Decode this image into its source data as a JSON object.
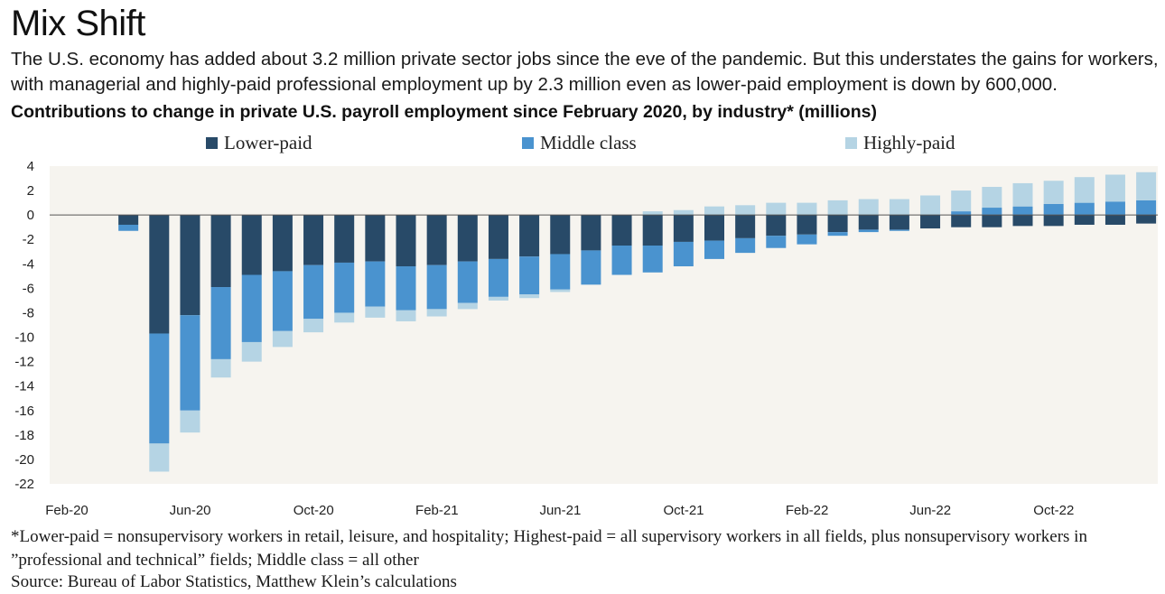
{
  "header": {
    "title": "Mix Shift",
    "subtitle": "The U.S. economy has added about 3.2 million private sector jobs since the eve of the pandemic. But this understates the gains for workers, with managerial and highly-paid professional employment up by 2.3 million even as lower-paid employment is down by 600,000.",
    "chart_heading": "Contributions to change in private U.S. payroll employment since February 2020, by industry* (millions)"
  },
  "footer": {
    "footnote": "*Lower-paid = nonsupervisory workers in retail, leisure, and hospitality; Highest-paid = all supervisory workers in all fields, plus nonsupervisory workers in ”professional and technical” fields; Middle class = all other",
    "source": "Source: Bureau of Labor Statistics, Matthew Klein’s calculations"
  },
  "colors": {
    "lower_paid": "#284a68",
    "middle_class": "#4a93cf",
    "highly_paid": "#b5d4e4",
    "plot_background": "#f6f4ef"
  },
  "chart_data": {
    "type": "bar",
    "stacked": true,
    "title": "Contributions to change in private U.S. payroll employment since February 2020, by industry* (millions)",
    "categories": [
      "Feb-20",
      "Mar-20",
      "Apr-20",
      "May-20",
      "Jun-20",
      "Jul-20",
      "Aug-20",
      "Sep-20",
      "Oct-20",
      "Nov-20",
      "Dec-20",
      "Jan-21",
      "Feb-21",
      "Mar-21",
      "Apr-21",
      "May-21",
      "Jun-21",
      "Jul-21",
      "Aug-21",
      "Sep-21",
      "Oct-21",
      "Nov-21",
      "Dec-21",
      "Jan-22",
      "Feb-22",
      "Mar-22",
      "Apr-22",
      "May-22",
      "Jun-22",
      "Jul-22",
      "Aug-22",
      "Sep-22",
      "Oct-22",
      "Nov-22",
      "Dec-22",
      "Jan-23"
    ],
    "x_tick_labels": [
      "Feb-20",
      "Jun-20",
      "Oct-20",
      "Feb-21",
      "Jun-21",
      "Oct-21",
      "Feb-22",
      "Jun-22",
      "Oct-22"
    ],
    "series": [
      {
        "name": "Lower-paid",
        "color": "#284a68",
        "values": [
          0,
          -0.8,
          -9.7,
          -8.2,
          -5.9,
          -4.9,
          -4.6,
          -4.1,
          -3.9,
          -3.8,
          -4.2,
          -4.1,
          -3.8,
          -3.6,
          -3.4,
          -3.2,
          -2.9,
          -2.5,
          -2.5,
          -2.2,
          -2.1,
          -1.9,
          -1.7,
          -1.6,
          -1.4,
          -1.2,
          -1.2,
          -1.1,
          -1.0,
          -1.0,
          -0.9,
          -0.9,
          -0.8,
          -0.8,
          -0.7,
          -0.6
        ]
      },
      {
        "name": "Middle class",
        "color": "#4a93cf",
        "values": [
          0,
          -0.5,
          -9.0,
          -7.8,
          -5.9,
          -5.5,
          -4.9,
          -4.4,
          -4.1,
          -3.7,
          -3.6,
          -3.6,
          -3.4,
          -3.1,
          -3.1,
          -2.9,
          -2.8,
          -2.4,
          -2.2,
          -2.0,
          -1.5,
          -1.2,
          -1.0,
          -0.8,
          -0.3,
          -0.2,
          -0.1,
          0.0,
          0.3,
          0.6,
          0.7,
          0.9,
          1.0,
          1.1,
          1.2,
          1.4
        ]
      },
      {
        "name": "Highly-paid",
        "color": "#b5d4e4",
        "values": [
          0,
          0.0,
          -2.3,
          -1.8,
          -1.5,
          -1.6,
          -1.3,
          -1.1,
          -0.8,
          -0.9,
          -0.9,
          -0.6,
          -0.5,
          -0.3,
          -0.3,
          -0.2,
          0.0,
          0.0,
          0.3,
          0.4,
          0.7,
          0.8,
          1.0,
          1.0,
          1.2,
          1.3,
          1.3,
          1.6,
          1.7,
          1.7,
          1.9,
          1.9,
          2.1,
          2.2,
          2.3,
          2.3
        ]
      }
    ],
    "xlabel": "",
    "ylabel": "",
    "ylim": [
      -22,
      4
    ],
    "yticks": [
      4,
      2,
      0,
      -2,
      -4,
      -6,
      -8,
      -10,
      -12,
      -14,
      -16,
      -18,
      -20,
      -22
    ],
    "grid": false,
    "legend_position": "top"
  }
}
